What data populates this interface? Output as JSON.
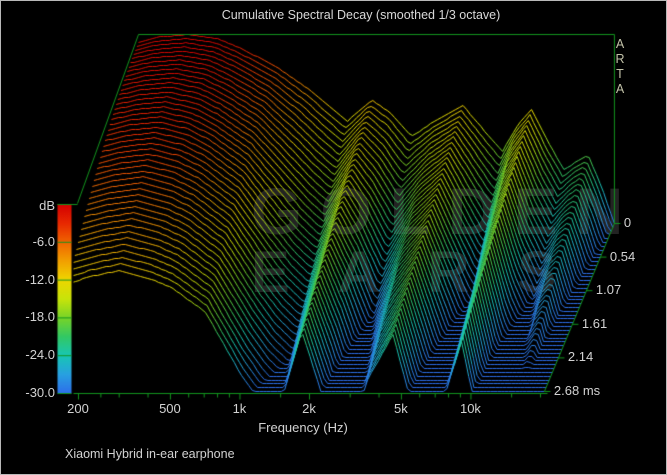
{
  "window": {
    "background": "#000000",
    "frame_color": "#b9b9b9"
  },
  "title": "Cumulative Spectral Decay (smoothed 1/3 octave)",
  "caption": "Xiaomi Hybrid in-ear earphone",
  "branding": {
    "letters": [
      "A",
      "R",
      "T",
      "A"
    ]
  },
  "watermark": {
    "line1": "GOLDEN",
    "line2": "EARS"
  },
  "colorbar": {
    "unit_label": "dB",
    "tick_labels": [
      "-6.0",
      "-12.0",
      "-18.0",
      "-24.0",
      "-30.0"
    ],
    "tick_db": [
      -6,
      -12,
      -18,
      -24,
      -30
    ]
  },
  "chart_data": {
    "type": "waterfall",
    "subtype": "cumulative-spectral-decay",
    "title": "Cumulative Spectral Decay (smoothed 1/3 octave)",
    "xlabel": "Frequency (Hz)",
    "zlabel": "dB",
    "freq_range_hz": [
      181,
      20800
    ],
    "db_range": [
      -30,
      0
    ],
    "db_tick_step": 6,
    "time_range_ms": [
      0,
      2.68
    ],
    "num_slices": 45,
    "x_ticks_major": [
      {
        "f": 200,
        "label": "200"
      },
      {
        "f": 500,
        "label": "500"
      },
      {
        "f": 1000,
        "label": "1k"
      },
      {
        "f": 2000,
        "label": "2k"
      },
      {
        "f": 5000,
        "label": "5k"
      },
      {
        "f": 10000,
        "label": "10k"
      }
    ],
    "x_ticks_minor": [
      250,
      300,
      400,
      600,
      700,
      800,
      900,
      1500,
      3000,
      4000,
      6000,
      7000,
      8000,
      9000,
      15000,
      20000
    ],
    "time_ticks": [
      {
        "t": 0.0,
        "label": "0"
      },
      {
        "t": 0.536,
        "label": "0.54"
      },
      {
        "t": 1.072,
        "label": "1.07"
      },
      {
        "t": 1.608,
        "label": "1.61"
      },
      {
        "t": 2.144,
        "label": "2.14"
      },
      {
        "t": 2.68,
        "label": "2.68 ms"
      }
    ],
    "response_at_t0": {
      "freq_hz": [
        181,
        224,
        300,
        400,
        500,
        708,
        1000,
        1200,
        1450,
        1850,
        2240,
        2750,
        3550,
        4600,
        5750,
        6800,
        7900,
        9100,
        10700,
        12600,
        14500,
        16000,
        18200,
        20800
      ],
      "db": [
        -1.2,
        -0.4,
        0,
        -0.7,
        -2.2,
        -5.0,
        -8.8,
        -11.3,
        -13.8,
        -10.4,
        -12.5,
        -16.2,
        -13.5,
        -11.3,
        -15.5,
        -18.6,
        -14.5,
        -11.9,
        -17.0,
        -21.5,
        -20.0,
        -19.2,
        -24.0,
        -30.0
      ],
      "decay_db_per_ms": [
        0.45,
        0.5,
        0.55,
        1.0,
        1.5,
        3.0,
        6.0,
        7.0,
        7.5,
        3.7,
        6.5,
        9.5,
        5.5,
        3.6,
        7.0,
        9.5,
        5.5,
        3.8,
        6.5,
        7.5,
        5.0,
        4.3,
        6.0,
        7.0
      ],
      "decay_accel_db_per_ms2": [
        1.45,
        1.4,
        1.3,
        1.2,
        1.0,
        0.6,
        0.3,
        0.15,
        0,
        0,
        0,
        0,
        0,
        0,
        0,
        0,
        0,
        0,
        0,
        0,
        0,
        0,
        0,
        0
      ]
    },
    "colormap": [
      {
        "db": 0,
        "color": "#d40000"
      },
      {
        "db": -3,
        "color": "#e82800"
      },
      {
        "db": -6,
        "color": "#f06400"
      },
      {
        "db": -9,
        "color": "#f2a000"
      },
      {
        "db": -12,
        "color": "#eed600"
      },
      {
        "db": -15,
        "color": "#c8e40a"
      },
      {
        "db": -18,
        "color": "#78d428"
      },
      {
        "db": -21,
        "color": "#32c864"
      },
      {
        "db": -24,
        "color": "#18c6b4"
      },
      {
        "db": -27,
        "color": "#28a0e1"
      },
      {
        "db": -30,
        "color": "#2d6eeb"
      }
    ],
    "axis_color": "#12961e",
    "label_color": "#d2d2d2",
    "floor_db": -30,
    "legend_position": "left-colorbar",
    "grid": false
  }
}
